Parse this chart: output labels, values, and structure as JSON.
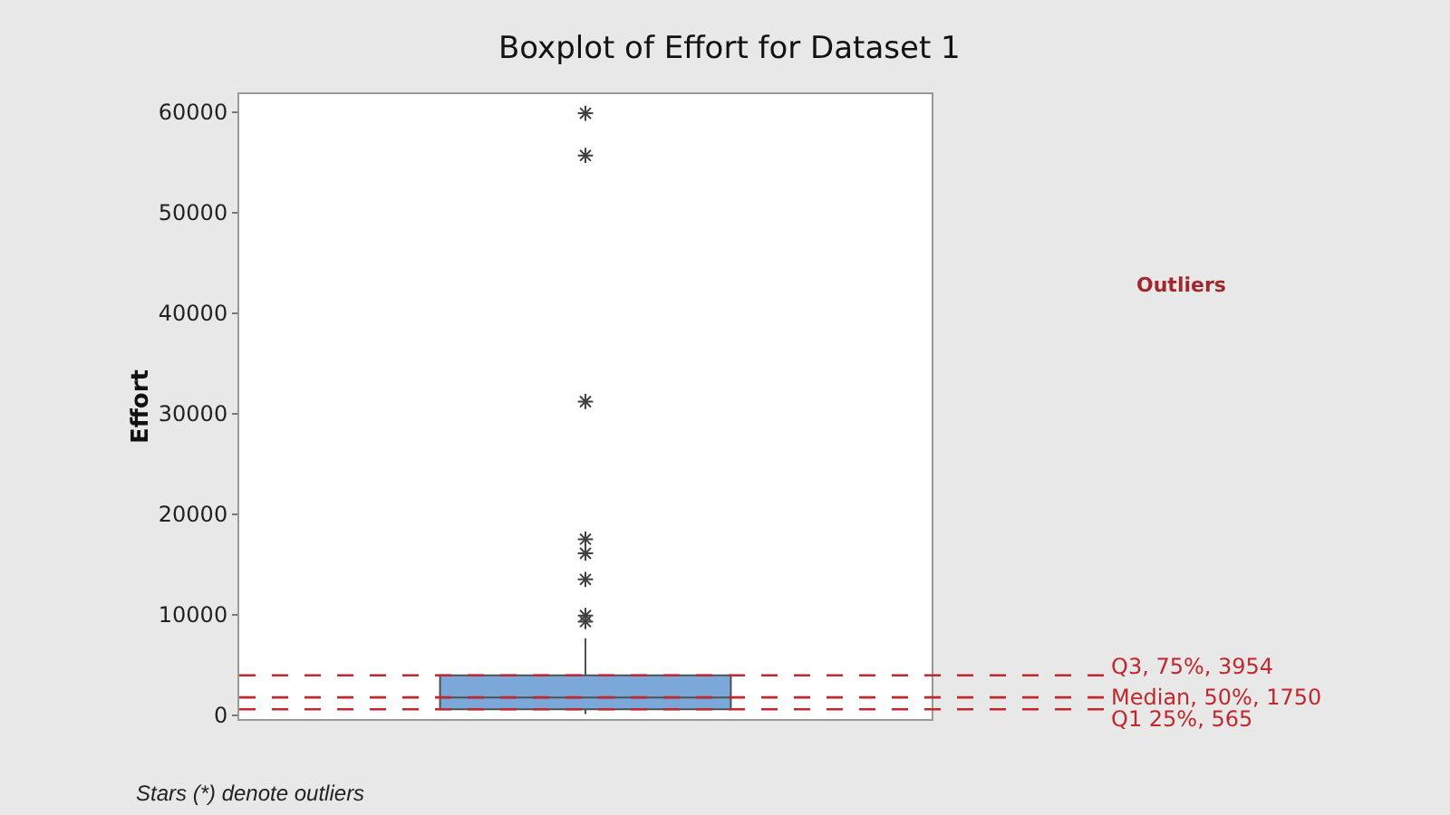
{
  "chart_data": {
    "type": "box",
    "title": "Boxplot of Effort for Dataset 1",
    "ylabel": "Effort",
    "categories": [
      null
    ],
    "boxes": [
      {
        "low": 100,
        "q1": 565,
        "median": 1750,
        "q3": 3954,
        "high": 7620,
        "outliers": [
          59900,
          55700,
          31200,
          17500,
          16100,
          13500,
          9900,
          9300
        ]
      }
    ],
    "color": "#7ba7d9",
    "marker": "star",
    "ylim": [
      -400,
      61800
    ],
    "yticks": [
      0,
      10000,
      20000,
      30000,
      40000,
      50000,
      60000
    ],
    "grid": false,
    "ref_lines": [
      {
        "axis": "y",
        "value": 3954,
        "label": "Q3, 75%, 3954",
        "color": "#c0282d",
        "line_style": "dashed"
      },
      {
        "axis": "y",
        "value": 1750,
        "label": "Median, 50%, 1750",
        "color": "#c0282d",
        "line_style": "dashed"
      },
      {
        "axis": "y",
        "value": 565,
        "label": "Q1 25%, 565",
        "color": "#c0282d",
        "line_style": "dashed"
      }
    ],
    "annotations": [
      "Outliers",
      "Stars (*) denote outliers"
    ]
  }
}
